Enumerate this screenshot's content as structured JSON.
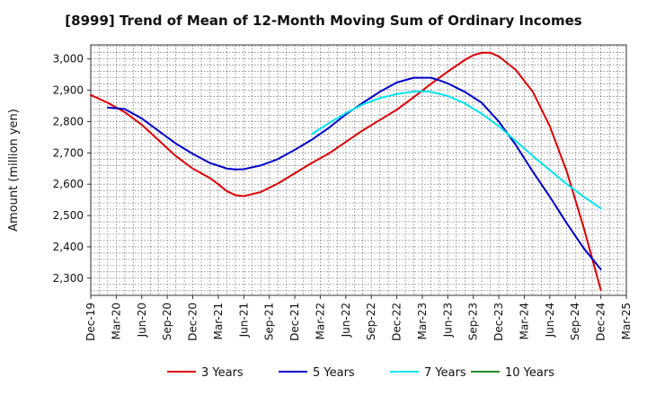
{
  "chart_data": {
    "type": "line",
    "title": "[8999]  Trend of Mean of 12-Month Moving Sum of Ordinary Incomes",
    "xlabel": "",
    "ylabel": "Amount (million yen)",
    "ylim": [
      2245,
      3045
    ],
    "yticks": [
      2300,
      2400,
      2500,
      2600,
      2700,
      2800,
      2900,
      3000
    ],
    "ytick_labels": [
      "2,300",
      "2,400",
      "2,500",
      "2,600",
      "2,700",
      "2,800",
      "2,900",
      "3,000"
    ],
    "xlim": [
      0,
      63
    ],
    "xtick_positions": [
      0,
      3,
      6,
      9,
      12,
      15,
      18,
      21,
      24,
      27,
      30,
      33,
      36,
      39,
      42,
      45,
      48,
      51,
      54,
      57,
      60,
      63
    ],
    "xtick_labels": [
      "Dec-19",
      "Mar-20",
      "Jun-20",
      "Sep-20",
      "Dec-20",
      "Mar-21",
      "Jun-21",
      "Sep-21",
      "Dec-21",
      "Mar-22",
      "Jun-22",
      "Sep-22",
      "Dec-22",
      "Mar-23",
      "Jun-23",
      "Sep-23",
      "Dec-23",
      "Mar-24",
      "Jun-24",
      "Sep-24",
      "Dec-24",
      "Mar-25"
    ],
    "grid": true,
    "legend_position": "bottom",
    "series": [
      {
        "name": "3 Years",
        "color": "#dd0000",
        "x": [
          0,
          2,
          4,
          6,
          8,
          10,
          12,
          14,
          15,
          16,
          17,
          18,
          20,
          22,
          24,
          26,
          28,
          30,
          32,
          34,
          36,
          38,
          40,
          42,
          44,
          45,
          46,
          47,
          48,
          50,
          52,
          54,
          56,
          58,
          60
        ],
        "y": [
          2885,
          2860,
          2830,
          2790,
          2740,
          2690,
          2650,
          2620,
          2600,
          2578,
          2565,
          2562,
          2575,
          2602,
          2635,
          2668,
          2698,
          2735,
          2772,
          2805,
          2838,
          2878,
          2920,
          2960,
          2997,
          3012,
          3020,
          3020,
          3008,
          2965,
          2895,
          2785,
          2640,
          2460,
          2262
        ]
      },
      {
        "name": "5 Years",
        "color": "#0000cc",
        "x": [
          2,
          4,
          6,
          8,
          10,
          12,
          14,
          16,
          17,
          18,
          20,
          22,
          24,
          26,
          28,
          30,
          32,
          34,
          36,
          38,
          40,
          41,
          42,
          44,
          46,
          48,
          50,
          52,
          54,
          56,
          58,
          60
        ],
        "y": [
          2845,
          2840,
          2810,
          2770,
          2730,
          2697,
          2668,
          2650,
          2647,
          2648,
          2660,
          2680,
          2710,
          2742,
          2780,
          2823,
          2860,
          2895,
          2925,
          2940,
          2940,
          2932,
          2922,
          2895,
          2860,
          2800,
          2725,
          2640,
          2560,
          2475,
          2395,
          2328
        ]
      },
      {
        "name": "7 Years",
        "color": "#00e5ee",
        "x": [
          26,
          28,
          30,
          32,
          34,
          36,
          38,
          39,
          40,
          42,
          44,
          46,
          48,
          50,
          52,
          54,
          56,
          58,
          60
        ],
        "y": [
          2760,
          2795,
          2827,
          2855,
          2875,
          2888,
          2896,
          2897,
          2895,
          2882,
          2858,
          2825,
          2785,
          2738,
          2690,
          2645,
          2600,
          2560,
          2523
        ]
      },
      {
        "name": "10 Years",
        "color": "#228b22",
        "x": [],
        "y": []
      }
    ]
  }
}
